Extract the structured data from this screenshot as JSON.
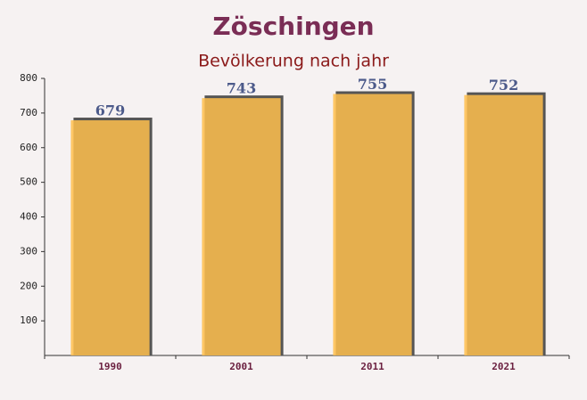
{
  "chart_data": {
    "type": "bar",
    "title": "Zöschingen",
    "subtitle": "Bevölkerung nach jahr",
    "categories": [
      "1990",
      "2001",
      "2011",
      "2021"
    ],
    "values": [
      679,
      743,
      755,
      752
    ],
    "color": "#ffc04d",
    "ylim": [
      0,
      800
    ],
    "yticks": [
      100,
      200,
      300,
      400,
      500,
      600,
      700,
      800
    ]
  }
}
